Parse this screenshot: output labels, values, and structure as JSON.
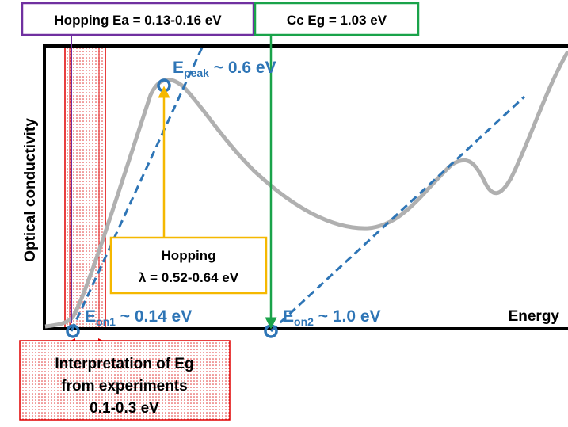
{
  "labels": {
    "hopping_ea": "Hopping Ea = 0.13-0.16 eV",
    "cc_eg": "Cc Eg = 1.03 eV",
    "e_peak": {
      "main": "E",
      "sub": "peak",
      "rest": " ~ 0.6 eV"
    },
    "e_on1": {
      "main": "E",
      "sub": "on1",
      "rest": " ~ 0.14 eV"
    },
    "e_on2": {
      "main": "E",
      "sub": "on2",
      "rest": " ~ 1.0 eV"
    },
    "hopping_lambda": [
      "Hopping",
      "λ = 0.52-0.64 eV"
    ],
    "x_axis": "Energy",
    "y_axis": "Optical conductivity",
    "interpretation": [
      "Interpretation of Eg",
      "from experiments",
      "0.1-0.3 eV"
    ]
  }
}
